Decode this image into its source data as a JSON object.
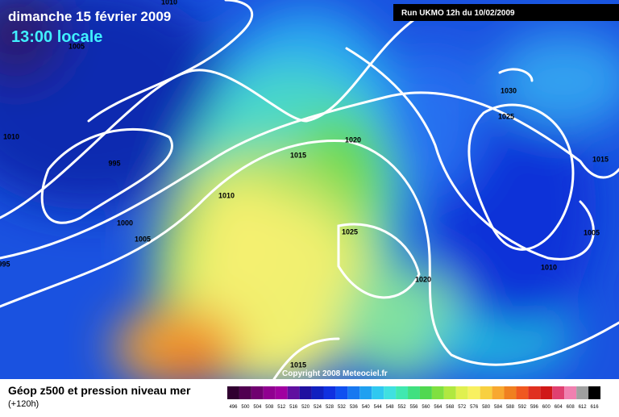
{
  "header": {
    "date_line": "dimanche 15 février 2009",
    "time_line": "13:00 locale",
    "run_info": "Run UKMO 12h du 10/02/2009"
  },
  "isobars": [
    "1010",
    "1005",
    "1010",
    "995",
    "1015",
    "1020",
    "1010",
    "1000",
    "1005",
    "1025",
    "1030",
    "1025",
    "1015",
    "1005",
    "1010",
    "1020",
    "1015",
    "995"
  ],
  "footer": {
    "title": "Géop z500 et pression niveau mer",
    "subtitle": "(+120h)",
    "copyright": "Copyright 2008 Meteociel.fr"
  },
  "legend": {
    "labels": [
      "496",
      "500",
      "504",
      "508",
      "512",
      "516",
      "520",
      "524",
      "528",
      "532",
      "536",
      "540",
      "544",
      "548",
      "552",
      "556",
      "560",
      "564",
      "568",
      "572",
      "576",
      "580",
      "584",
      "588",
      "592",
      "596",
      "600",
      "604",
      "608",
      "612",
      "616"
    ]
  }
}
